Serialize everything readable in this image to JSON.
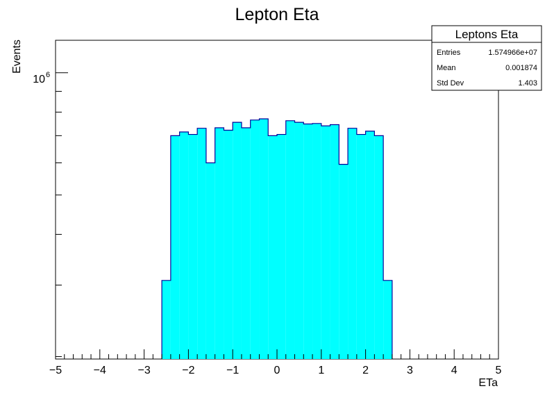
{
  "chart_data": {
    "type": "bar",
    "title": "Lepton Eta",
    "xlabel": "ETa",
    "ylabel": "Events",
    "xlim": [
      -5,
      5
    ],
    "ylog": true,
    "ylim_log10": [
      5.295,
      6.08
    ],
    "xticks": [
      "−5",
      "−4",
      "−3",
      "−2",
      "−1",
      "0",
      "1",
      "2",
      "3",
      "4",
      "5"
    ],
    "ytick_label_base": "10",
    "ytick_label_exp": "6",
    "fill_color": "#00ffff",
    "line_color": "#000099",
    "bins": [
      {
        "x0": -2.6,
        "x1": -2.4,
        "y": 308000
      },
      {
        "x0": -2.4,
        "x1": -2.2,
        "y": 700000
      },
      {
        "x0": -2.2,
        "x1": -2.0,
        "y": 715000
      },
      {
        "x0": -2.0,
        "x1": -1.8,
        "y": 705000
      },
      {
        "x0": -1.8,
        "x1": -1.6,
        "y": 730000
      },
      {
        "x0": -1.6,
        "x1": -1.4,
        "y": 600000
      },
      {
        "x0": -1.4,
        "x1": -1.2,
        "y": 732000
      },
      {
        "x0": -1.2,
        "x1": -1.0,
        "y": 722000
      },
      {
        "x0": -1.0,
        "x1": -0.8,
        "y": 755000
      },
      {
        "x0": -0.8,
        "x1": -0.6,
        "y": 732000
      },
      {
        "x0": -0.6,
        "x1": -0.4,
        "y": 765000
      },
      {
        "x0": -0.4,
        "x1": -0.2,
        "y": 770000
      },
      {
        "x0": -0.2,
        "x1": 0.0,
        "y": 700000
      },
      {
        "x0": 0.0,
        "x1": 0.2,
        "y": 705000
      },
      {
        "x0": 0.2,
        "x1": 0.4,
        "y": 762000
      },
      {
        "x0": 0.4,
        "x1": 0.6,
        "y": 755000
      },
      {
        "x0": 0.6,
        "x1": 0.8,
        "y": 748000
      },
      {
        "x0": 0.8,
        "x1": 1.0,
        "y": 750000
      },
      {
        "x0": 1.0,
        "x1": 1.2,
        "y": 740000
      },
      {
        "x0": 1.2,
        "x1": 1.4,
        "y": 745000
      },
      {
        "x0": 1.4,
        "x1": 1.6,
        "y": 595000
      },
      {
        "x0": 1.6,
        "x1": 1.8,
        "y": 730000
      },
      {
        "x0": 1.8,
        "x1": 2.0,
        "y": 705000
      },
      {
        "x0": 2.0,
        "x1": 2.2,
        "y": 718000
      },
      {
        "x0": 2.2,
        "x1": 2.4,
        "y": 700000
      },
      {
        "x0": 2.4,
        "x1": 2.6,
        "y": 308000
      }
    ]
  },
  "stats_box": {
    "title": "Leptons Eta",
    "rows": [
      {
        "label": "Entries",
        "value": "1.574966e+07"
      },
      {
        "label": "Mean",
        "value": "0.001874"
      },
      {
        "label": "Std Dev",
        "value": "1.403"
      }
    ]
  }
}
